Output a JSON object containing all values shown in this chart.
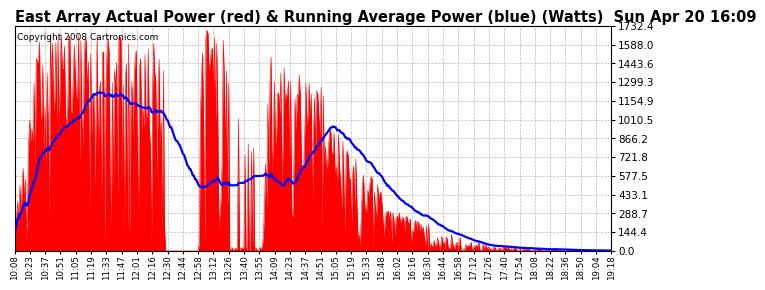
{
  "title": "East Array Actual Power (red) & Running Average Power (blue) (Watts)  Sun Apr 20 16:09",
  "copyright": "Copyright 2008 Cartronics.com",
  "ymax": 1732.4,
  "ymin": 0.0,
  "ylabel_ticks": [
    0.0,
    144.4,
    288.7,
    433.1,
    577.5,
    721.8,
    866.2,
    1010.5,
    1154.9,
    1299.3,
    1443.6,
    1588.0,
    1732.4
  ],
  "ylabel_labels": [
    "0.0",
    "144.4",
    "288.7",
    "433.1",
    "577.5",
    "721.8",
    "866.2",
    "1010.5",
    "1154.9",
    "1299.3",
    "1443.6",
    "1588.0",
    "1732.4"
  ],
  "background_color": "#ffffff",
  "fill_color": "#ff0000",
  "line_color": "#0000ff",
  "grid_color": "#aaaaaa",
  "title_fontsize": 10.5,
  "copyright_fontsize": 6.5,
  "x_tick_fontsize": 6.2,
  "y_tick_fontsize": 7.5,
  "x_tick_labels": [
    "10:08",
    "10:23",
    "10:37",
    "10:51",
    "11:05",
    "11:19",
    "11:33",
    "11:47",
    "12:01",
    "12:16",
    "12:30",
    "12:44",
    "12:58",
    "13:12",
    "13:26",
    "13:40",
    "13:55",
    "14:09",
    "14:23",
    "14:37",
    "14:51",
    "15:05",
    "15:19",
    "15:33",
    "15:48",
    "16:02",
    "16:16",
    "16:30",
    "16:44",
    "16:58",
    "17:12",
    "17:26",
    "17:40",
    "17:54",
    "18:08",
    "18:22",
    "18:36",
    "18:50",
    "19:04",
    "19:18"
  ]
}
